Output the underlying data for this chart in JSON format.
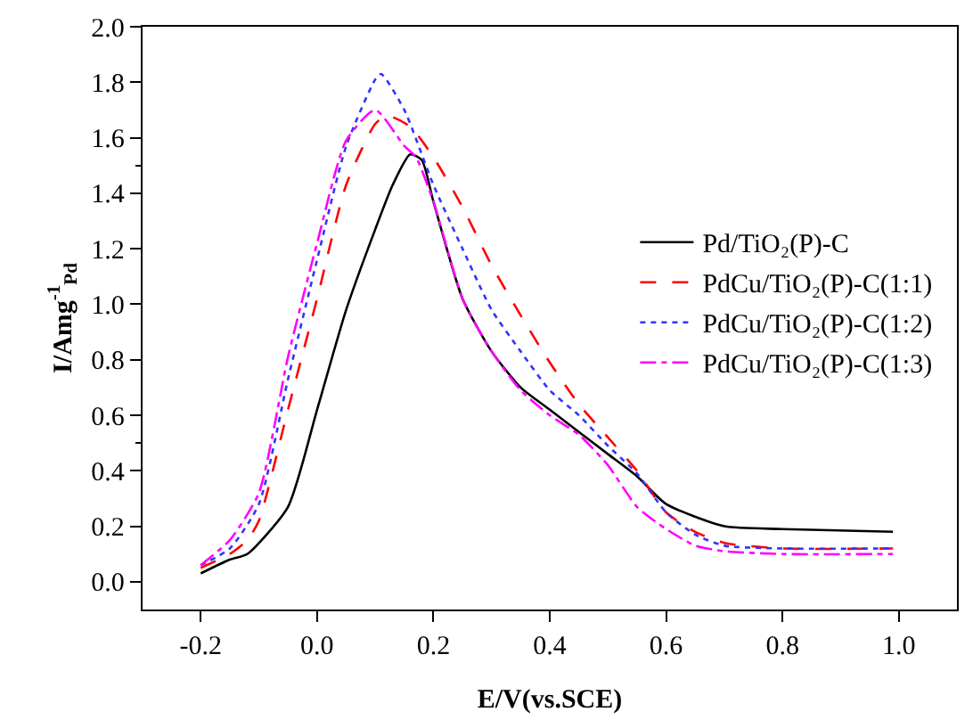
{
  "chart_data": {
    "type": "line",
    "xlabel": "E/V(vs.SCE)",
    "ylabel": "I/Amg$^{-1}$$_{Pd}$",
    "xlim": [
      -0.3,
      1.1
    ],
    "xticks": [
      {
        "value": -0.2,
        "label": "-0.2"
      },
      {
        "value": 0,
        "label": "0.0"
      },
      {
        "value": 0.2,
        "label": "0.2"
      },
      {
        "value": 0.4,
        "label": "0.4"
      },
      {
        "value": 0.6,
        "label": "0.6"
      },
      {
        "value": 0.8,
        "label": "0.8"
      },
      {
        "value": 1,
        "label": "1.0"
      }
    ],
    "ylim": [
      -0.1,
      2.0
    ],
    "yticks": [
      {
        "value": 0,
        "label": "0.0"
      },
      {
        "value": 0.2,
        "label": "0.2"
      },
      {
        "value": 0.4,
        "label": "0.4"
      },
      {
        "value": 0.6,
        "label": "0.6"
      },
      {
        "value": 0.8,
        "label": "0.8"
      },
      {
        "value": 1,
        "label": "1.0"
      },
      {
        "value": 1.2,
        "label": "1.2"
      },
      {
        "value": 1.4,
        "label": "1.4"
      },
      {
        "value": 1.6,
        "label": "1.6"
      },
      {
        "value": 1.8,
        "label": "1.8"
      },
      {
        "value": 2,
        "label": "2.0"
      }
    ],
    "grid": false,
    "legend": "right",
    "marker": "none",
    "series": [
      {
        "name": "Pd/TiO₂(P)-C",
        "color": "#000000",
        "line_style": "solid",
        "x": [
          -0.2,
          -0.15,
          -0.12,
          -0.05,
          0,
          0.05,
          0.1,
          0.13,
          0.16,
          0.18,
          0.2,
          0.25,
          0.3,
          0.35,
          0.4,
          0.5,
          0.55,
          0.6,
          0.7,
          0.8,
          0.99
        ],
        "values": [
          0.03,
          0.08,
          0.1,
          0.27,
          0.62,
          0.98,
          1.27,
          1.43,
          1.54,
          1.52,
          1.37,
          1.02,
          0.83,
          0.7,
          0.62,
          0.46,
          0.38,
          0.28,
          0.2,
          0.19,
          0.18
        ]
      },
      {
        "name": "PdCu/TiO₂(P)-C(1:1)",
        "color": "#ff0000",
        "line_style": "dashed",
        "x": [
          -0.2,
          -0.15,
          -0.12,
          -0.1,
          -0.05,
          0,
          0.05,
          0.1,
          0.12,
          0.16,
          0.2,
          0.25,
          0.3,
          0.35,
          0.4,
          0.45,
          0.5,
          0.55,
          0.6,
          0.65,
          0.7,
          0.8,
          0.99
        ],
        "values": [
          0.05,
          0.1,
          0.15,
          0.22,
          0.62,
          1.02,
          1.43,
          1.65,
          1.68,
          1.64,
          1.53,
          1.35,
          1.14,
          0.96,
          0.79,
          0.64,
          0.52,
          0.4,
          0.25,
          0.18,
          0.14,
          0.12,
          0.12
        ]
      },
      {
        "name": "PdCu/TiO₂(P)-C(1:2)",
        "color": "#3333ff",
        "line_style": "dotted",
        "x": [
          -0.2,
          -0.15,
          -0.1,
          -0.05,
          0,
          0.05,
          0.1,
          0.11,
          0.15,
          0.2,
          0.25,
          0.3,
          0.35,
          0.4,
          0.45,
          0.5,
          0.55,
          0.6,
          0.65,
          0.7,
          0.8,
          0.99
        ],
        "values": [
          0.06,
          0.12,
          0.28,
          0.73,
          1.16,
          1.57,
          1.81,
          1.83,
          1.7,
          1.43,
          1.2,
          0.98,
          0.83,
          0.69,
          0.6,
          0.49,
          0.39,
          0.25,
          0.17,
          0.13,
          0.12,
          0.12
        ]
      },
      {
        "name": "PdCu/TiO₂(P)-C(1:3)",
        "color": "#ff00ff",
        "line_style": "dashdot",
        "x": [
          -0.2,
          -0.15,
          -0.1,
          -0.05,
          0,
          0.05,
          0.1,
          0.15,
          0.17,
          0.2,
          0.25,
          0.3,
          0.35,
          0.4,
          0.45,
          0.5,
          0.55,
          0.6,
          0.65,
          0.7,
          0.8,
          0.99
        ],
        "values": [
          0.06,
          0.15,
          0.32,
          0.81,
          1.22,
          1.59,
          1.7,
          1.57,
          1.53,
          1.37,
          1.02,
          0.83,
          0.69,
          0.6,
          0.53,
          0.42,
          0.27,
          0.19,
          0.13,
          0.11,
          0.1,
          0.1
        ]
      }
    ]
  }
}
